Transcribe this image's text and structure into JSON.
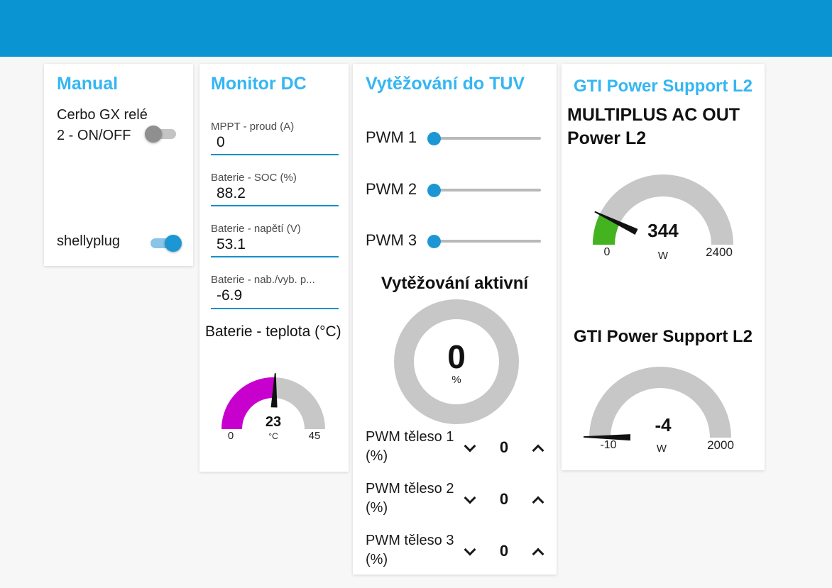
{
  "theme": {
    "header_color": "#0a95d2",
    "panel_title_color": "#35b6f2",
    "accent_blue": "#1c97d4",
    "input_underline_color": "#1490c8",
    "gauge_track_color": "#c7c7c7",
    "slider_track_color": "#b9b9b9",
    "page_background": "#f7f7f7"
  },
  "panels": {
    "manual": {
      "title": "Manual",
      "switches": [
        {
          "label": "Cerbo GX relé 2 - ON/OFF",
          "state": "off"
        },
        {
          "label": "shellyplug",
          "state": "on"
        }
      ]
    },
    "monitor_dc": {
      "title": "Monitor DC",
      "fields": [
        {
          "label": "MPPT - proud (A)",
          "value": "0"
        },
        {
          "label": "Baterie - SOC (%)",
          "value": "88.2"
        },
        {
          "label": "Baterie - napětí (V)",
          "value": "53.1"
        },
        {
          "label": "Baterie - nab./vyb. p...",
          "value": "-6.9"
        }
      ],
      "temp_gauge": {
        "title": "Baterie - teplota (°C)",
        "value": 23,
        "value_label": "23",
        "units": "°C",
        "min": 0,
        "max": 45,
        "min_label": "0",
        "max_label": "45",
        "color": "#c800ce"
      }
    },
    "tuv": {
      "title": "Vytěžování do TUV",
      "sliders": [
        {
          "label": "PWM 1",
          "value": 0
        },
        {
          "label": "PWM 2",
          "value": 0
        },
        {
          "label": "PWM 3",
          "value": 0
        }
      ],
      "donut": {
        "title": "Vytěžování aktivní",
        "value": 0,
        "value_label": "0",
        "units": "%"
      },
      "steppers": [
        {
          "label": "PWM těleso 1 (%)",
          "value": "0"
        },
        {
          "label": "PWM těleso 2 (%)",
          "value": "0"
        },
        {
          "label": "PWM těleso 3 (%)",
          "value": "0"
        }
      ]
    },
    "gti": {
      "title": "GTI Power Support L2",
      "gauges": [
        {
          "title": "MULTIPLUS AC OUT Power L2",
          "value": 344,
          "value_label": "344",
          "units": "W",
          "min": 0,
          "max": 2400,
          "min_label": "0",
          "max_label": "2400",
          "color": "#43b320"
        },
        {
          "title": "GTI Power Support L2",
          "value": -4,
          "value_label": "-4",
          "units": "W",
          "min": -10,
          "max": 2000,
          "min_label": "-10",
          "max_label": "2000",
          "color": "#43b320"
        }
      ]
    }
  }
}
